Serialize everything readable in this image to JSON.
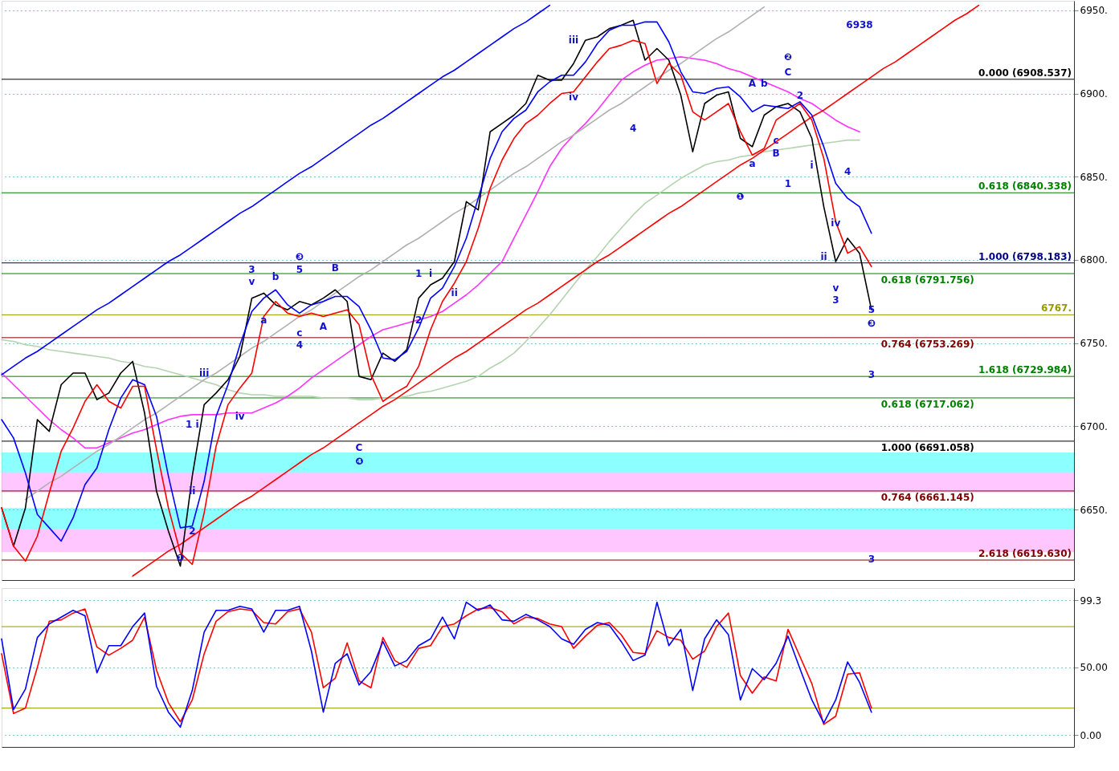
{
  "chart_data": [
    {
      "type": "line",
      "categories": [
        null,
        null,
        null,
        null,
        null,
        null,
        null,
        null,
        null,
        null,
        null,
        null,
        null,
        null,
        null,
        null,
        null,
        null,
        null,
        null,
        null,
        null,
        null,
        null,
        null,
        null,
        null,
        null,
        null,
        null,
        null,
        null,
        null,
        null,
        null,
        null,
        null,
        null,
        null,
        null,
        null,
        null,
        null,
        null,
        null,
        null,
        null,
        null,
        null,
        null,
        null,
        null,
        null,
        null,
        null,
        null,
        null,
        null,
        null,
        null,
        null,
        null,
        null,
        null,
        null,
        null,
        null,
        null,
        null,
        null,
        null,
        null,
        null,
        null,
        null,
        null,
        null,
        null,
        null,
        null,
        null,
        null,
        null,
        null,
        null,
        null,
        null,
        null,
        null,
        null,
        null
      ],
      "ylim": [
        6607.6,
        6955.7
      ],
      "tick_labels": "y",
      "grid": "y",
      "yticks": [
        {
          "value": 6650,
          "label": "6650."
        },
        {
          "value": 6700,
          "label": "6700."
        },
        {
          "value": 6750,
          "label": "6750."
        },
        {
          "value": 6800,
          "label": "6800."
        },
        {
          "value": 6850,
          "label": "6850."
        },
        {
          "value": 6900,
          "label": "6900."
        },
        {
          "value": 6950,
          "label": "6950."
        }
      ],
      "series": [
        {
          "color": "#b5d3b0",
          "values": [
            6752,
            6751,
            6749,
            6748,
            6746,
            6745,
            6744,
            6743,
            6742,
            6741,
            6739,
            6738,
            6736,
            6735,
            6733,
            6731,
            6729,
            6727,
            6725,
            6722,
            6720,
            6719,
            6719,
            6718,
            6718,
            6718,
            6718,
            6717,
            6717,
            6717,
            6716,
            6716,
            6717,
            6717,
            6718,
            6720,
            6721,
            6723,
            6725,
            6727,
            6730,
            6735,
            6739,
            6744,
            6751,
            6759,
            6767,
            6776,
            6785,
            6794,
            6802,
            6811,
            6819,
            6827,
            6834,
            6839,
            6844,
            6849,
            6853,
            6857,
            6859,
            6860,
            6862,
            6863,
            6865,
            6866,
            6867,
            6868,
            6869,
            6870,
            6871,
            6872,
            6872,
            null,
            null,
            null,
            null,
            null,
            null,
            null,
            null,
            null,
            null,
            null,
            null,
            null,
            null,
            null,
            null,
            null,
            null
          ]
        },
        {
          "color": "#ff33ff",
          "values": [
            6732,
            6725,
            6718,
            6711,
            6704,
            6698,
            6693,
            6687,
            6687,
            6690,
            6693,
            6696,
            6698,
            6701,
            6704,
            6706,
            6707,
            6707,
            6707,
            6708,
            6708,
            6708,
            6711,
            6714,
            6718,
            6723,
            6729,
            6734,
            6739,
            6744,
            6749,
            6754,
            6758,
            6760,
            6762,
            6764,
            6766,
            6769,
            6774,
            6779,
            6785,
            6792,
            6799,
            6813,
            6827,
            6841,
            6856,
            6867,
            6875,
            6882,
            6890,
            6899,
            6908,
            6913,
            6917,
            6920,
            6921,
            6922,
            6921,
            6920,
            6918,
            6915,
            6913,
            6910,
            6907,
            6904,
            6901,
            6897,
            6894,
            6889,
            6884,
            6880,
            6877,
            null,
            null,
            null,
            null,
            null,
            null,
            null,
            null,
            null,
            null,
            null,
            null,
            null,
            null,
            null,
            null,
            null,
            null
          ]
        },
        {
          "color": "#b0b0b0",
          "values": [
            null,
            null,
            6656,
            6661,
            6666,
            6670,
            6675,
            6680,
            6685,
            6689,
            6694,
            6699,
            6704,
            6708,
            6713,
            6718,
            6723,
            6728,
            6732,
            6737,
            6742,
            6747,
            6751,
            6756,
            6761,
            6766,
            6770,
            6775,
            6780,
            6785,
            6790,
            6794,
            6799,
            6804,
            6809,
            6813,
            6818,
            6823,
            6828,
            6832,
            6837,
            6842,
            6847,
            6852,
            6856,
            6861,
            6866,
            6871,
            6875,
            6880,
            6885,
            6890,
            6894,
            6899,
            6904,
            6909,
            6914,
            6918,
            6923,
            6928,
            6933,
            6937,
            6942,
            6947,
            6952,
            null,
            null,
            null,
            null,
            null,
            null,
            null,
            null,
            null,
            null,
            null,
            null,
            null,
            null,
            null,
            null,
            null,
            null,
            null,
            null,
            null,
            null,
            null,
            null,
            null,
            null
          ]
        },
        {
          "color": "#0000ff",
          "values": [
            6731,
            6736,
            6741,
            6745,
            6750,
            6755,
            6760,
            6765,
            6770,
            6774,
            6779,
            6784,
            6789,
            6794,
            6799,
            6803,
            6808,
            6813,
            6818,
            6823,
            6828,
            6832,
            6837,
            6842,
            6847,
            6852,
            6856,
            6861,
            6866,
            6871,
            6876,
            6881,
            6885,
            6890,
            6895,
            6900,
            6905,
            6910,
            6914,
            6919,
            6924,
            6929,
            6934,
            6939,
            6943,
            6948,
            6953,
            null,
            null,
            null,
            null,
            null,
            null,
            null,
            null,
            null,
            null,
            null,
            null,
            null,
            null,
            null,
            null,
            null,
            null,
            null,
            null,
            null,
            null,
            null,
            null,
            null,
            null,
            null,
            null,
            null,
            null,
            null,
            null,
            null,
            null,
            null,
            null,
            null,
            null,
            null,
            null,
            null,
            null,
            null,
            null
          ]
        },
        {
          "color": "#ff0000",
          "values": [
            null,
            null,
            null,
            null,
            null,
            null,
            null,
            null,
            null,
            null,
            null,
            6610,
            6615,
            6620,
            6625,
            6629,
            6634,
            6639,
            6644,
            6649,
            6654,
            6658,
            6663,
            6668,
            6673,
            6678,
            6683,
            6687,
            6692,
            6697,
            6702,
            6707,
            6712,
            6716,
            6721,
            6726,
            6731,
            6736,
            6741,
            6745,
            6750,
            6755,
            6760,
            6765,
            6770,
            6774,
            6779,
            6784,
            6789,
            6794,
            6799,
            6803,
            6808,
            6813,
            6818,
            6823,
            6828,
            6832,
            6837,
            6842,
            6847,
            6852,
            6857,
            6861,
            6866,
            6871,
            6876,
            6881,
            6886,
            6890,
            6895,
            6900,
            6905,
            6910,
            6915,
            6919,
            6924,
            6929,
            6934,
            6939,
            6944,
            6948,
            6953,
            null,
            null,
            null,
            null,
            null,
            null,
            null,
            null
          ]
        },
        {
          "color": "#000000",
          "values": [
            6651,
            6628,
            6651,
            6704,
            6697,
            6725,
            6732,
            6732,
            6716,
            6720,
            6732,
            6739,
            6708,
            6661,
            6637,
            6616,
            6670,
            6713,
            6720,
            6728,
            6742,
            6777,
            6780,
            6773,
            6770,
            6775,
            6773,
            6777,
            6782,
            6775,
            6730,
            6728,
            6744,
            6739,
            6746,
            6777,
            6785,
            6789,
            6799,
            6835,
            6830,
            6877,
            6882,
            6887,
            6894,
            6911,
            6908,
            6908,
            6918,
            6932,
            6934,
            6939,
            6941,
            6944,
            6920,
            6927,
            6920,
            6899,
            6865,
            6894,
            6899,
            6901,
            6873,
            6868,
            6887,
            6892,
            6894,
            6889,
            6873,
            6832,
            6799,
            6813,
            6804,
            6770,
            null,
            null,
            null,
            null,
            null,
            null,
            null,
            null,
            null,
            null,
            null,
            null,
            null,
            null,
            null,
            null,
            null
          ]
        },
        {
          "color": "#0000ff",
          "values": [
            6704,
            6693,
            6672,
            6647,
            6639,
            6631,
            6645,
            6665,
            6675,
            6698,
            6717,
            6728,
            6725,
            6706,
            6670,
            6639,
            6640,
            6667,
            6706,
            6725,
            6749,
            6769,
            6777,
            6782,
            6773,
            6768,
            6773,
            6775,
            6778,
            6778,
            6772,
            6758,
            6741,
            6740,
            6745,
            6759,
            6777,
            6783,
            6796,
            6813,
            6837,
            6861,
            6877,
            6885,
            6890,
            6901,
            6907,
            6911,
            6911,
            6919,
            6930,
            6938,
            6941,
            6941,
            6943,
            6943,
            6931,
            6913,
            6901,
            6900,
            6903,
            6904,
            6898,
            6889,
            6893,
            6892,
            6891,
            6895,
            6887,
            6868,
            6846,
            6837,
            6832,
            6816,
            null,
            null,
            null,
            null,
            null,
            null,
            null,
            null,
            null,
            null,
            null,
            null,
            null,
            null,
            null,
            null,
            null
          ]
        },
        {
          "color": "#ff0000",
          "values": [
            6651,
            6628,
            6619,
            6634,
            6660,
            6685,
            6699,
            6715,
            6725,
            6715,
            6711,
            6724,
            6724,
            6686,
            6651,
            6624,
            6617,
            6648,
            6688,
            6713,
            6723,
            6732,
            6766,
            6775,
            6768,
            6766,
            6768,
            6766,
            6768,
            6770,
            6761,
            6731,
            6715,
            6720,
            6724,
            6736,
            6758,
            6775,
            6786,
            6799,
            6819,
            6843,
            6860,
            6873,
            6882,
            6887,
            6894,
            6900,
            6901,
            6910,
            6919,
            6927,
            6929,
            6932,
            6930,
            6906,
            6918,
            6911,
            6889,
            6884,
            6889,
            6894,
            6877,
            6863,
            6867,
            6884,
            6889,
            6894,
            6884,
            6861,
            6823,
            6804,
            6808,
            6796,
            null,
            null,
            null,
            null,
            null,
            null,
            null,
            null,
            null,
            null,
            null,
            null,
            null,
            null,
            null,
            null,
            null
          ]
        }
      ],
      "bands": [
        {
          "axis": "y",
          "from": 6672.3,
          "to": 6684.2,
          "color": "#00ffff"
        },
        {
          "axis": "y",
          "from": 6660.4,
          "to": 6672.3,
          "color": "#ff80ff"
        },
        {
          "axis": "y",
          "from": 6638.5,
          "to": 6650.9,
          "color": "#00ffff"
        },
        {
          "axis": "y",
          "from": 6624.3,
          "to": 6638.5,
          "color": "#ff80ff"
        }
      ],
      "ref_lines": [
        {
          "axis": "y",
          "value": 6908.537,
          "label": "0.000 (6908.537)",
          "color": "#000000"
        },
        {
          "axis": "y",
          "value": 6791.756,
          "label": "0.618 (6791.756)",
          "color": "#008000"
        },
        {
          "axis": "y",
          "value": 6840.338,
          "label": "0.618 (6840.338)",
          "color": "#008000"
        },
        {
          "axis": "y",
          "value": 6753.269,
          "label": "0.764 (6753.269)",
          "color": "#800000"
        },
        {
          "axis": "y",
          "value": 6798.183,
          "label": "1.000 (6798.183)",
          "color": "#000080"
        },
        {
          "axis": "y",
          "value": 6691.058,
          "label": "1.000 (6691.058)",
          "color": "#000000"
        },
        {
          "axis": "y",
          "value": 6729.984,
          "label": "1.618 (6729.984)",
          "color": "#008000"
        },
        {
          "axis": "y",
          "value": 6661.145,
          "label": "0.764 (6661.145)",
          "color": "#800000"
        },
        {
          "axis": "y",
          "value": 6619.63,
          "label": "2.618 (6619.630)",
          "color": "#800000"
        },
        {
          "axis": "y",
          "value": 6717.062,
          "label": "0.618 (6717.062)",
          "color": "#008000"
        },
        {
          "axis": "y",
          "value": 6767,
          "label": "6767.",
          "color": "#999900"
        }
      ],
      "annotations": [
        "6938",
        "3",
        "v",
        "b",
        "5",
        "❸",
        "B",
        "a",
        "c",
        "4",
        "A",
        "iii",
        "iv",
        "1 i",
        "ii",
        "2",
        "❶",
        "C",
        "❹",
        "1",
        "i",
        "2",
        "ii",
        "iii",
        "iv",
        "4",
        "❷",
        "C",
        "A",
        "b",
        "c",
        "B",
        "a",
        "❶",
        "1",
        "i",
        "2",
        "4",
        "iv",
        "ii",
        "v",
        "3",
        "5",
        "❸",
        "3",
        "3"
      ]
    },
    {
      "type": "line",
      "categories": [
        null,
        null,
        null,
        null,
        null,
        null,
        null,
        null,
        null,
        null,
        null,
        null,
        null,
        null,
        null,
        null,
        null,
        null,
        null,
        null,
        null,
        null,
        null,
        null,
        null,
        null,
        null,
        null,
        null,
        null,
        null,
        null,
        null,
        null,
        null,
        null,
        null,
        null,
        null,
        null,
        null,
        null,
        null,
        null,
        null,
        null,
        null,
        null,
        null,
        null,
        null,
        null,
        null,
        null,
        null,
        null,
        null,
        null,
        null,
        null,
        null,
        null,
        null,
        null,
        null,
        null,
        null,
        null,
        null,
        null,
        null,
        null,
        null,
        null,
        null,
        null,
        null,
        null,
        null,
        null,
        null,
        null,
        null,
        null,
        null,
        null,
        null,
        null,
        null,
        null,
        null
      ],
      "ylim": [
        -8.6,
        108.4
      ],
      "tick_labels": "y",
      "grid": "y",
      "yticks": [
        {
          "value": 0,
          "label": "0.00"
        },
        {
          "value": 50,
          "label": "50.00"
        },
        {
          "value": 99.3,
          "label": "99.3"
        }
      ],
      "series": [
        {
          "color": "#ff0000",
          "values": [
            60,
            16,
            20,
            50,
            84,
            85,
            90,
            93,
            65,
            59,
            64,
            70,
            87,
            48,
            24,
            10,
            26,
            60,
            84,
            91,
            93,
            92,
            83,
            82,
            91,
            93,
            76,
            35,
            42,
            68,
            40,
            35,
            72,
            55,
            50,
            64,
            66,
            80,
            82,
            88,
            93,
            94,
            91,
            82,
            87,
            86,
            82,
            80,
            64,
            73,
            81,
            83,
            74,
            61,
            60,
            77,
            72,
            70,
            56,
            62,
            80,
            90,
            44,
            31,
            43,
            40,
            78,
            58,
            38,
            8,
            14,
            45,
            46,
            20,
            null,
            null,
            null,
            null,
            null,
            null,
            null,
            null,
            null,
            null,
            null,
            null,
            null,
            null,
            null,
            null,
            null
          ]
        },
        {
          "color": "#0000ff",
          "values": [
            71,
            19,
            34,
            72,
            82,
            87,
            92,
            88,
            46,
            66,
            66,
            80,
            90,
            36,
            17,
            6,
            33,
            76,
            92,
            92,
            95,
            93,
            76,
            92,
            92,
            95,
            62,
            17,
            53,
            60,
            37,
            47,
            69,
            51,
            55,
            66,
            71,
            87,
            71,
            98,
            92,
            96,
            85,
            84,
            89,
            85,
            80,
            71,
            67,
            78,
            83,
            81,
            69,
            55,
            59,
            98,
            66,
            78,
            33,
            71,
            85,
            74,
            26,
            49,
            41,
            53,
            73,
            49,
            26,
            9,
            26,
            54,
            39,
            17,
            null,
            null,
            null,
            null,
            null,
            null,
            null,
            null,
            null,
            null,
            null,
            null,
            null,
            null,
            null,
            null,
            null
          ]
        }
      ],
      "ref_lines": [
        {
          "axis": "y",
          "value": 80,
          "color": "#999900"
        },
        {
          "axis": "y",
          "value": 20,
          "color": "#999900"
        }
      ]
    }
  ]
}
